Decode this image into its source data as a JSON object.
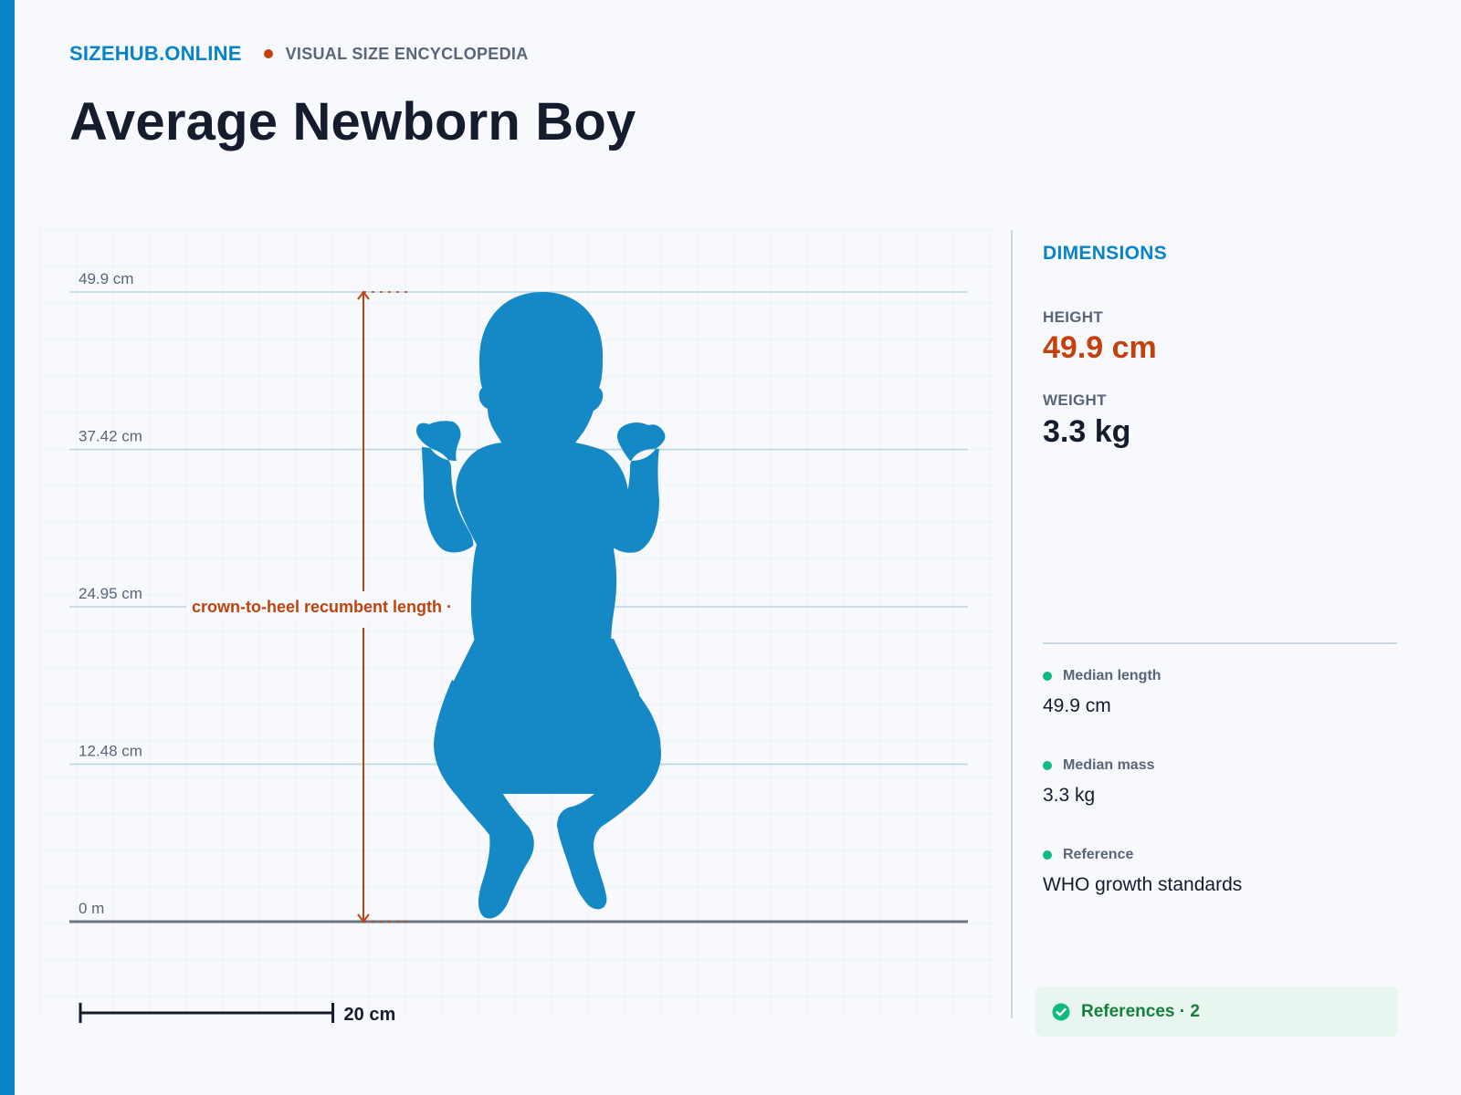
{
  "header": {
    "brand": "SIZEHUB.ONLINE",
    "tagline": "VISUAL SIZE ENCYCLOPEDIA"
  },
  "page_title": "Average Newborn Boy",
  "diagram": {
    "scale_max_cm": 49.9,
    "reference_lines": [
      {
        "value": 49.9,
        "label": "49.9 cm"
      },
      {
        "value": 37.42,
        "label": "37.42 cm"
      },
      {
        "value": 24.95,
        "label": "24.95 cm"
      },
      {
        "value": 12.48,
        "label": "12.48 cm"
      },
      {
        "value": 0,
        "label": "0 m"
      }
    ],
    "measure_label": "crown-to-heel recumbent length ·",
    "scale_bar_cm": 20,
    "scale_bar_label": "20 cm",
    "silhouette_color": "#1589c6",
    "measure_color": "#c2410c"
  },
  "sidebar": {
    "section_title": "DIMENSIONS",
    "height_label": "HEIGHT",
    "height_value": "49.9 cm",
    "weight_label": "WEIGHT",
    "weight_value": "3.3 kg",
    "facts": [
      {
        "label": "Median length",
        "value": "49.9 cm"
      },
      {
        "label": "Median mass",
        "value": "3.3 kg"
      },
      {
        "label": "Reference",
        "value": "WHO growth standards"
      }
    ],
    "references_label": "References · 2"
  },
  "colors": {
    "accent": "#0784c7",
    "highlight": "#c2410c",
    "success": "#10b981"
  }
}
